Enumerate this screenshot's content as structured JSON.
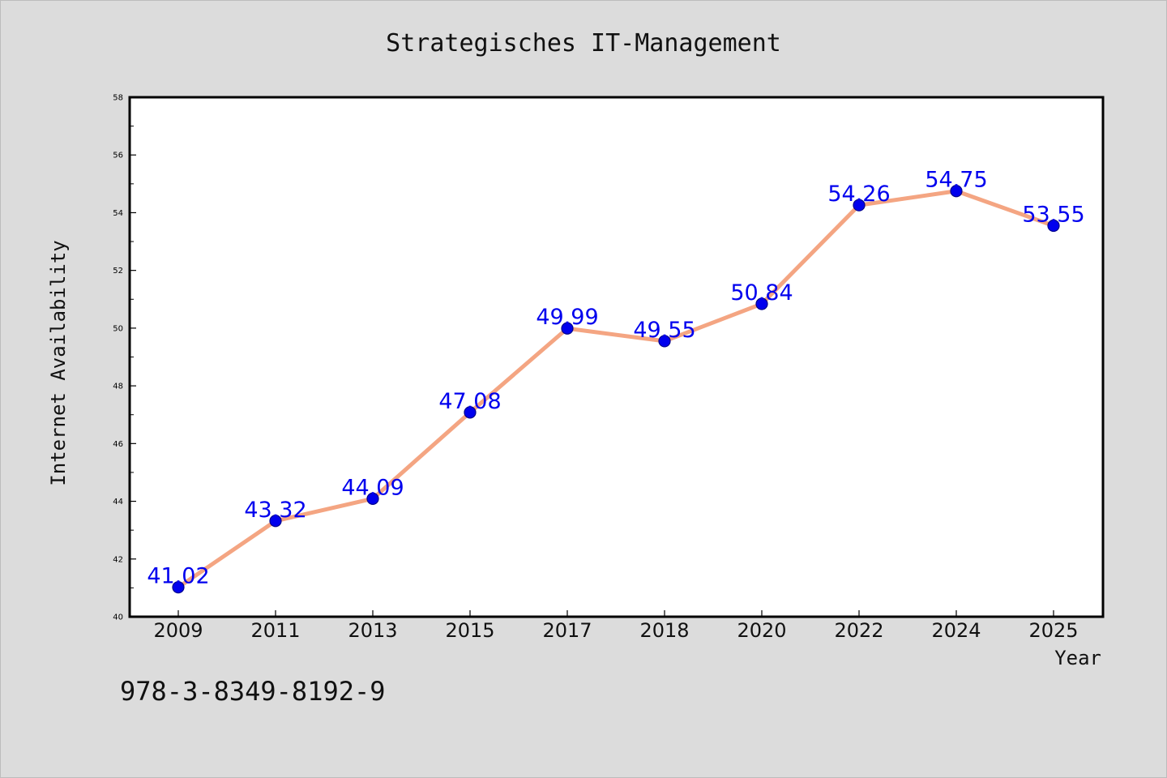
{
  "chart_data": {
    "type": "line",
    "title": "Strategisches IT-Management",
    "xlabel": "Year",
    "ylabel": "Internet Availability",
    "categories": [
      "2009",
      "2011",
      "2013",
      "2015",
      "2017",
      "2018",
      "2020",
      "2022",
      "2024",
      "2025"
    ],
    "values": [
      41.02,
      43.32,
      44.09,
      47.08,
      49.99,
      49.55,
      50.84,
      54.26,
      54.75,
      53.55
    ],
    "data_labels": [
      "41.02",
      "43.32",
      "44.09",
      "47.08",
      "49.99",
      "49.55",
      "50.84",
      "54.26",
      "54.75",
      "53.55"
    ],
    "ylim": [
      40,
      58
    ],
    "y_ticks": [
      "40",
      "42",
      "44",
      "46",
      "48",
      "50",
      "52",
      "54",
      "56",
      "58"
    ],
    "grid": false,
    "line_color": "#f4a582",
    "marker_color": "#0000ee",
    "label_color": "#0000ee",
    "annotation": "978-3-8349-8192-9"
  }
}
